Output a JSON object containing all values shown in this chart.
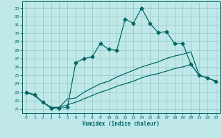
{
  "xlabel": "Humidex (Indice chaleur)",
  "bg_color": "#c0e8e8",
  "grid_color": "#98cccc",
  "line_color": "#006666",
  "xlim": [
    -0.5,
    23.5
  ],
  "ylim": [
    20.5,
    33.8
  ],
  "xticks": [
    0,
    1,
    2,
    3,
    4,
    5,
    6,
    7,
    8,
    9,
    10,
    11,
    12,
    13,
    14,
    15,
    16,
    17,
    18,
    19,
    20,
    21,
    22,
    23
  ],
  "yticks": [
    21,
    22,
    23,
    24,
    25,
    26,
    27,
    28,
    29,
    30,
    31,
    32,
    33
  ],
  "s1_x": [
    0,
    1,
    2,
    3,
    4,
    5,
    6,
    7,
    8,
    9,
    10,
    11,
    12,
    13,
    14,
    15,
    16,
    17,
    18,
    19,
    20,
    21,
    22,
    23
  ],
  "s1_y": [
    23.0,
    22.7,
    21.8,
    21.1,
    21.1,
    21.2,
    26.5,
    27.0,
    27.2,
    28.8,
    28.1,
    28.0,
    31.7,
    31.2,
    33.0,
    31.2,
    30.1,
    30.2,
    28.8,
    28.8,
    26.3,
    25.0,
    24.7,
    24.3
  ],
  "s2_x": [
    0,
    1,
    2,
    3,
    4,
    5,
    6,
    7,
    8,
    9,
    10,
    11,
    12,
    13,
    14,
    15,
    16,
    17,
    18,
    19,
    20,
    21,
    22,
    23
  ],
  "s2_y": [
    23.0,
    22.6,
    21.8,
    21.2,
    21.2,
    22.2,
    22.3,
    23.0,
    23.5,
    24.0,
    24.3,
    24.8,
    25.2,
    25.6,
    26.0,
    26.3,
    26.6,
    27.0,
    27.3,
    27.5,
    27.8,
    25.0,
    24.7,
    24.3
  ],
  "s3_x": [
    0,
    1,
    2,
    3,
    4,
    5,
    6,
    7,
    8,
    9,
    10,
    11,
    12,
    13,
    14,
    15,
    16,
    17,
    18,
    19,
    20,
    21,
    22,
    23
  ],
  "s3_y": [
    23.0,
    22.6,
    21.8,
    21.2,
    21.2,
    21.5,
    21.8,
    22.2,
    22.6,
    23.0,
    23.3,
    23.7,
    24.0,
    24.3,
    24.7,
    25.0,
    25.2,
    25.5,
    25.8,
    26.0,
    26.3,
    25.0,
    24.7,
    24.3
  ]
}
